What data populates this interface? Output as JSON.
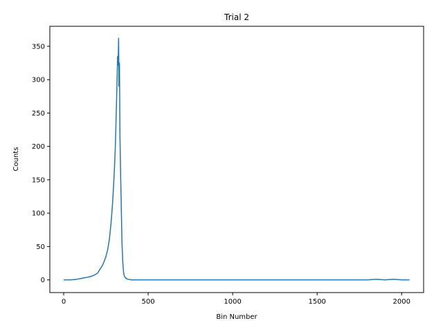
{
  "chart_data": {
    "type": "line",
    "title": "Trial 2",
    "xlabel": "Bin Number",
    "ylabel": "Counts",
    "xlim": [
      -82,
      2130
    ],
    "ylim": [
      -19,
      380
    ],
    "xticks": [
      0,
      500,
      1000,
      1500,
      2000
    ],
    "yticks": [
      0,
      50,
      100,
      150,
      200,
      250,
      300,
      350
    ],
    "grid": false,
    "legend": "none",
    "series": [
      {
        "color": "#1f77b4",
        "x": [
          0,
          40,
          80,
          100,
          120,
          140,
          160,
          180,
          200,
          210,
          220,
          230,
          240,
          250,
          260,
          270,
          275,
          280,
          285,
          290,
          295,
          300,
          305,
          310,
          313,
          316,
          319,
          322,
          325,
          327,
          330,
          333,
          336,
          340,
          345,
          350,
          355,
          360,
          370,
          380,
          400,
          450,
          500,
          600,
          700,
          800,
          900,
          1000,
          1100,
          1200,
          1300,
          1400,
          1500,
          1600,
          1700,
          1800,
          1850,
          1900,
          1950,
          2000,
          2047
        ],
        "y": [
          0,
          0,
          1,
          2,
          3,
          4,
          5,
          7,
          10,
          14,
          18,
          22,
          28,
          35,
          45,
          60,
          72,
          85,
          100,
          118,
          140,
          165,
          195,
          240,
          270,
          300,
          335,
          322,
          362,
          290,
          325,
          215,
          170,
          120,
          55,
          25,
          10,
          5,
          2,
          1,
          0,
          0,
          0,
          0,
          0,
          0,
          0,
          0,
          0,
          0,
          0,
          0,
          0,
          0,
          0,
          0,
          1,
          0,
          1,
          0,
          0
        ]
      }
    ]
  }
}
